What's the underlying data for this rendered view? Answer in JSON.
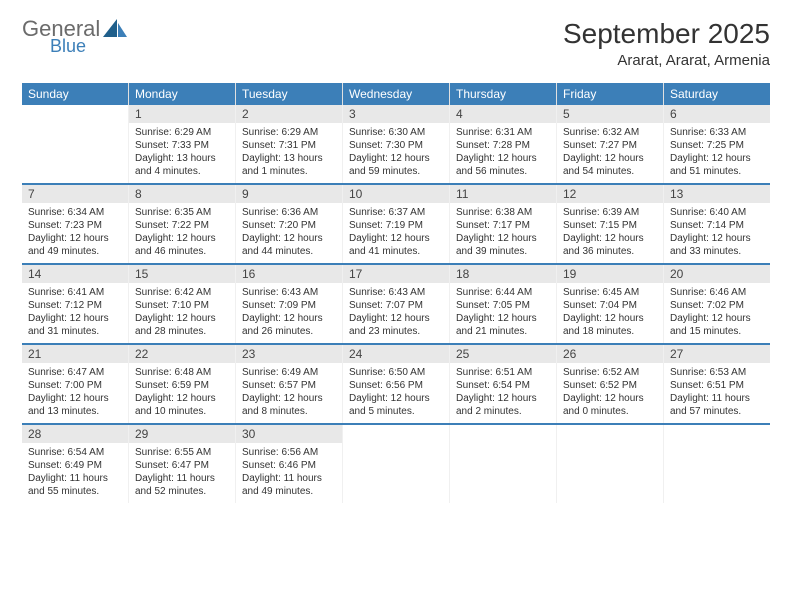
{
  "logo": {
    "top": "General",
    "bottom": "Blue"
  },
  "title": "September 2025",
  "location": "Ararat, Ararat, Armenia",
  "weekdays": [
    "Sunday",
    "Monday",
    "Tuesday",
    "Wednesday",
    "Thursday",
    "Friday",
    "Saturday"
  ],
  "colors": {
    "header_bg": "#3c7fb8",
    "border": "#3c7fb8",
    "daybar": "#e8e8e8",
    "text": "#333333",
    "logo_gray": "#6b6b6b",
    "logo_blue": "#3c7fb8"
  },
  "weeks": [
    [
      {
        "n": "",
        "sr": "",
        "ss": "",
        "dl": "",
        "empty": true
      },
      {
        "n": "1",
        "sr": "Sunrise: 6:29 AM",
        "ss": "Sunset: 7:33 PM",
        "dl": "Daylight: 13 hours and 4 minutes."
      },
      {
        "n": "2",
        "sr": "Sunrise: 6:29 AM",
        "ss": "Sunset: 7:31 PM",
        "dl": "Daylight: 13 hours and 1 minutes."
      },
      {
        "n": "3",
        "sr": "Sunrise: 6:30 AM",
        "ss": "Sunset: 7:30 PM",
        "dl": "Daylight: 12 hours and 59 minutes."
      },
      {
        "n": "4",
        "sr": "Sunrise: 6:31 AM",
        "ss": "Sunset: 7:28 PM",
        "dl": "Daylight: 12 hours and 56 minutes."
      },
      {
        "n": "5",
        "sr": "Sunrise: 6:32 AM",
        "ss": "Sunset: 7:27 PM",
        "dl": "Daylight: 12 hours and 54 minutes."
      },
      {
        "n": "6",
        "sr": "Sunrise: 6:33 AM",
        "ss": "Sunset: 7:25 PM",
        "dl": "Daylight: 12 hours and 51 minutes."
      }
    ],
    [
      {
        "n": "7",
        "sr": "Sunrise: 6:34 AM",
        "ss": "Sunset: 7:23 PM",
        "dl": "Daylight: 12 hours and 49 minutes."
      },
      {
        "n": "8",
        "sr": "Sunrise: 6:35 AM",
        "ss": "Sunset: 7:22 PM",
        "dl": "Daylight: 12 hours and 46 minutes."
      },
      {
        "n": "9",
        "sr": "Sunrise: 6:36 AM",
        "ss": "Sunset: 7:20 PM",
        "dl": "Daylight: 12 hours and 44 minutes."
      },
      {
        "n": "10",
        "sr": "Sunrise: 6:37 AM",
        "ss": "Sunset: 7:19 PM",
        "dl": "Daylight: 12 hours and 41 minutes."
      },
      {
        "n": "11",
        "sr": "Sunrise: 6:38 AM",
        "ss": "Sunset: 7:17 PM",
        "dl": "Daylight: 12 hours and 39 minutes."
      },
      {
        "n": "12",
        "sr": "Sunrise: 6:39 AM",
        "ss": "Sunset: 7:15 PM",
        "dl": "Daylight: 12 hours and 36 minutes."
      },
      {
        "n": "13",
        "sr": "Sunrise: 6:40 AM",
        "ss": "Sunset: 7:14 PM",
        "dl": "Daylight: 12 hours and 33 minutes."
      }
    ],
    [
      {
        "n": "14",
        "sr": "Sunrise: 6:41 AM",
        "ss": "Sunset: 7:12 PM",
        "dl": "Daylight: 12 hours and 31 minutes."
      },
      {
        "n": "15",
        "sr": "Sunrise: 6:42 AM",
        "ss": "Sunset: 7:10 PM",
        "dl": "Daylight: 12 hours and 28 minutes."
      },
      {
        "n": "16",
        "sr": "Sunrise: 6:43 AM",
        "ss": "Sunset: 7:09 PM",
        "dl": "Daylight: 12 hours and 26 minutes."
      },
      {
        "n": "17",
        "sr": "Sunrise: 6:43 AM",
        "ss": "Sunset: 7:07 PM",
        "dl": "Daylight: 12 hours and 23 minutes."
      },
      {
        "n": "18",
        "sr": "Sunrise: 6:44 AM",
        "ss": "Sunset: 7:05 PM",
        "dl": "Daylight: 12 hours and 21 minutes."
      },
      {
        "n": "19",
        "sr": "Sunrise: 6:45 AM",
        "ss": "Sunset: 7:04 PM",
        "dl": "Daylight: 12 hours and 18 minutes."
      },
      {
        "n": "20",
        "sr": "Sunrise: 6:46 AM",
        "ss": "Sunset: 7:02 PM",
        "dl": "Daylight: 12 hours and 15 minutes."
      }
    ],
    [
      {
        "n": "21",
        "sr": "Sunrise: 6:47 AM",
        "ss": "Sunset: 7:00 PM",
        "dl": "Daylight: 12 hours and 13 minutes."
      },
      {
        "n": "22",
        "sr": "Sunrise: 6:48 AM",
        "ss": "Sunset: 6:59 PM",
        "dl": "Daylight: 12 hours and 10 minutes."
      },
      {
        "n": "23",
        "sr": "Sunrise: 6:49 AM",
        "ss": "Sunset: 6:57 PM",
        "dl": "Daylight: 12 hours and 8 minutes."
      },
      {
        "n": "24",
        "sr": "Sunrise: 6:50 AM",
        "ss": "Sunset: 6:56 PM",
        "dl": "Daylight: 12 hours and 5 minutes."
      },
      {
        "n": "25",
        "sr": "Sunrise: 6:51 AM",
        "ss": "Sunset: 6:54 PM",
        "dl": "Daylight: 12 hours and 2 minutes."
      },
      {
        "n": "26",
        "sr": "Sunrise: 6:52 AM",
        "ss": "Sunset: 6:52 PM",
        "dl": "Daylight: 12 hours and 0 minutes."
      },
      {
        "n": "27",
        "sr": "Sunrise: 6:53 AM",
        "ss": "Sunset: 6:51 PM",
        "dl": "Daylight: 11 hours and 57 minutes."
      }
    ],
    [
      {
        "n": "28",
        "sr": "Sunrise: 6:54 AM",
        "ss": "Sunset: 6:49 PM",
        "dl": "Daylight: 11 hours and 55 minutes."
      },
      {
        "n": "29",
        "sr": "Sunrise: 6:55 AM",
        "ss": "Sunset: 6:47 PM",
        "dl": "Daylight: 11 hours and 52 minutes."
      },
      {
        "n": "30",
        "sr": "Sunrise: 6:56 AM",
        "ss": "Sunset: 6:46 PM",
        "dl": "Daylight: 11 hours and 49 minutes."
      },
      {
        "n": "",
        "sr": "",
        "ss": "",
        "dl": "",
        "empty": true
      },
      {
        "n": "",
        "sr": "",
        "ss": "",
        "dl": "",
        "empty": true
      },
      {
        "n": "",
        "sr": "",
        "ss": "",
        "dl": "",
        "empty": true
      },
      {
        "n": "",
        "sr": "",
        "ss": "",
        "dl": "",
        "empty": true
      }
    ]
  ]
}
